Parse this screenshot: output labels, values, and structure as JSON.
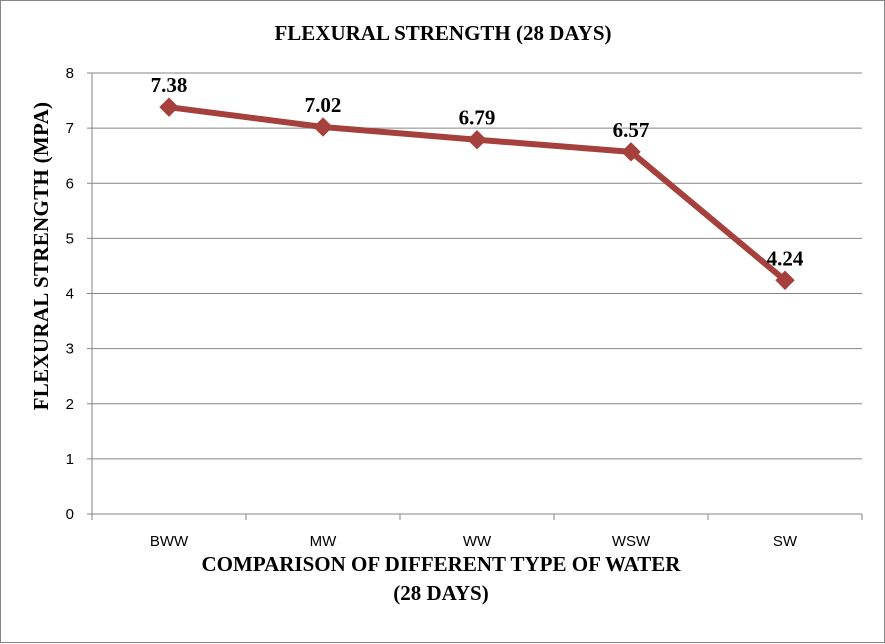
{
  "chart_data": {
    "type": "line",
    "title": "FLEXURAL STRENGTH  (28 DAYS)",
    "xlabel_lines": [
      "COMPARISON OF DIFFERENT TYPE OF WATER",
      "(28 DAYS)"
    ],
    "ylabel": "FLEXURAL  STRENGTH (MPA)",
    "categories": [
      "BWW",
      "MW",
      "WW",
      "WSW",
      "SW"
    ],
    "series": [
      {
        "values": [
          7.38,
          7.02,
          6.79,
          6.57,
          4.24
        ],
        "color": "#A5403D"
      }
    ],
    "data_labels": [
      "7.38",
      "7.02",
      "6.79",
      "6.57",
      "4.24"
    ],
    "ylim": [
      0,
      8
    ],
    "yticks": [
      0,
      1,
      2,
      3,
      4,
      5,
      6,
      7,
      8
    ],
    "grid": "horizontal",
    "legend": "none",
    "marker": "diamond"
  }
}
